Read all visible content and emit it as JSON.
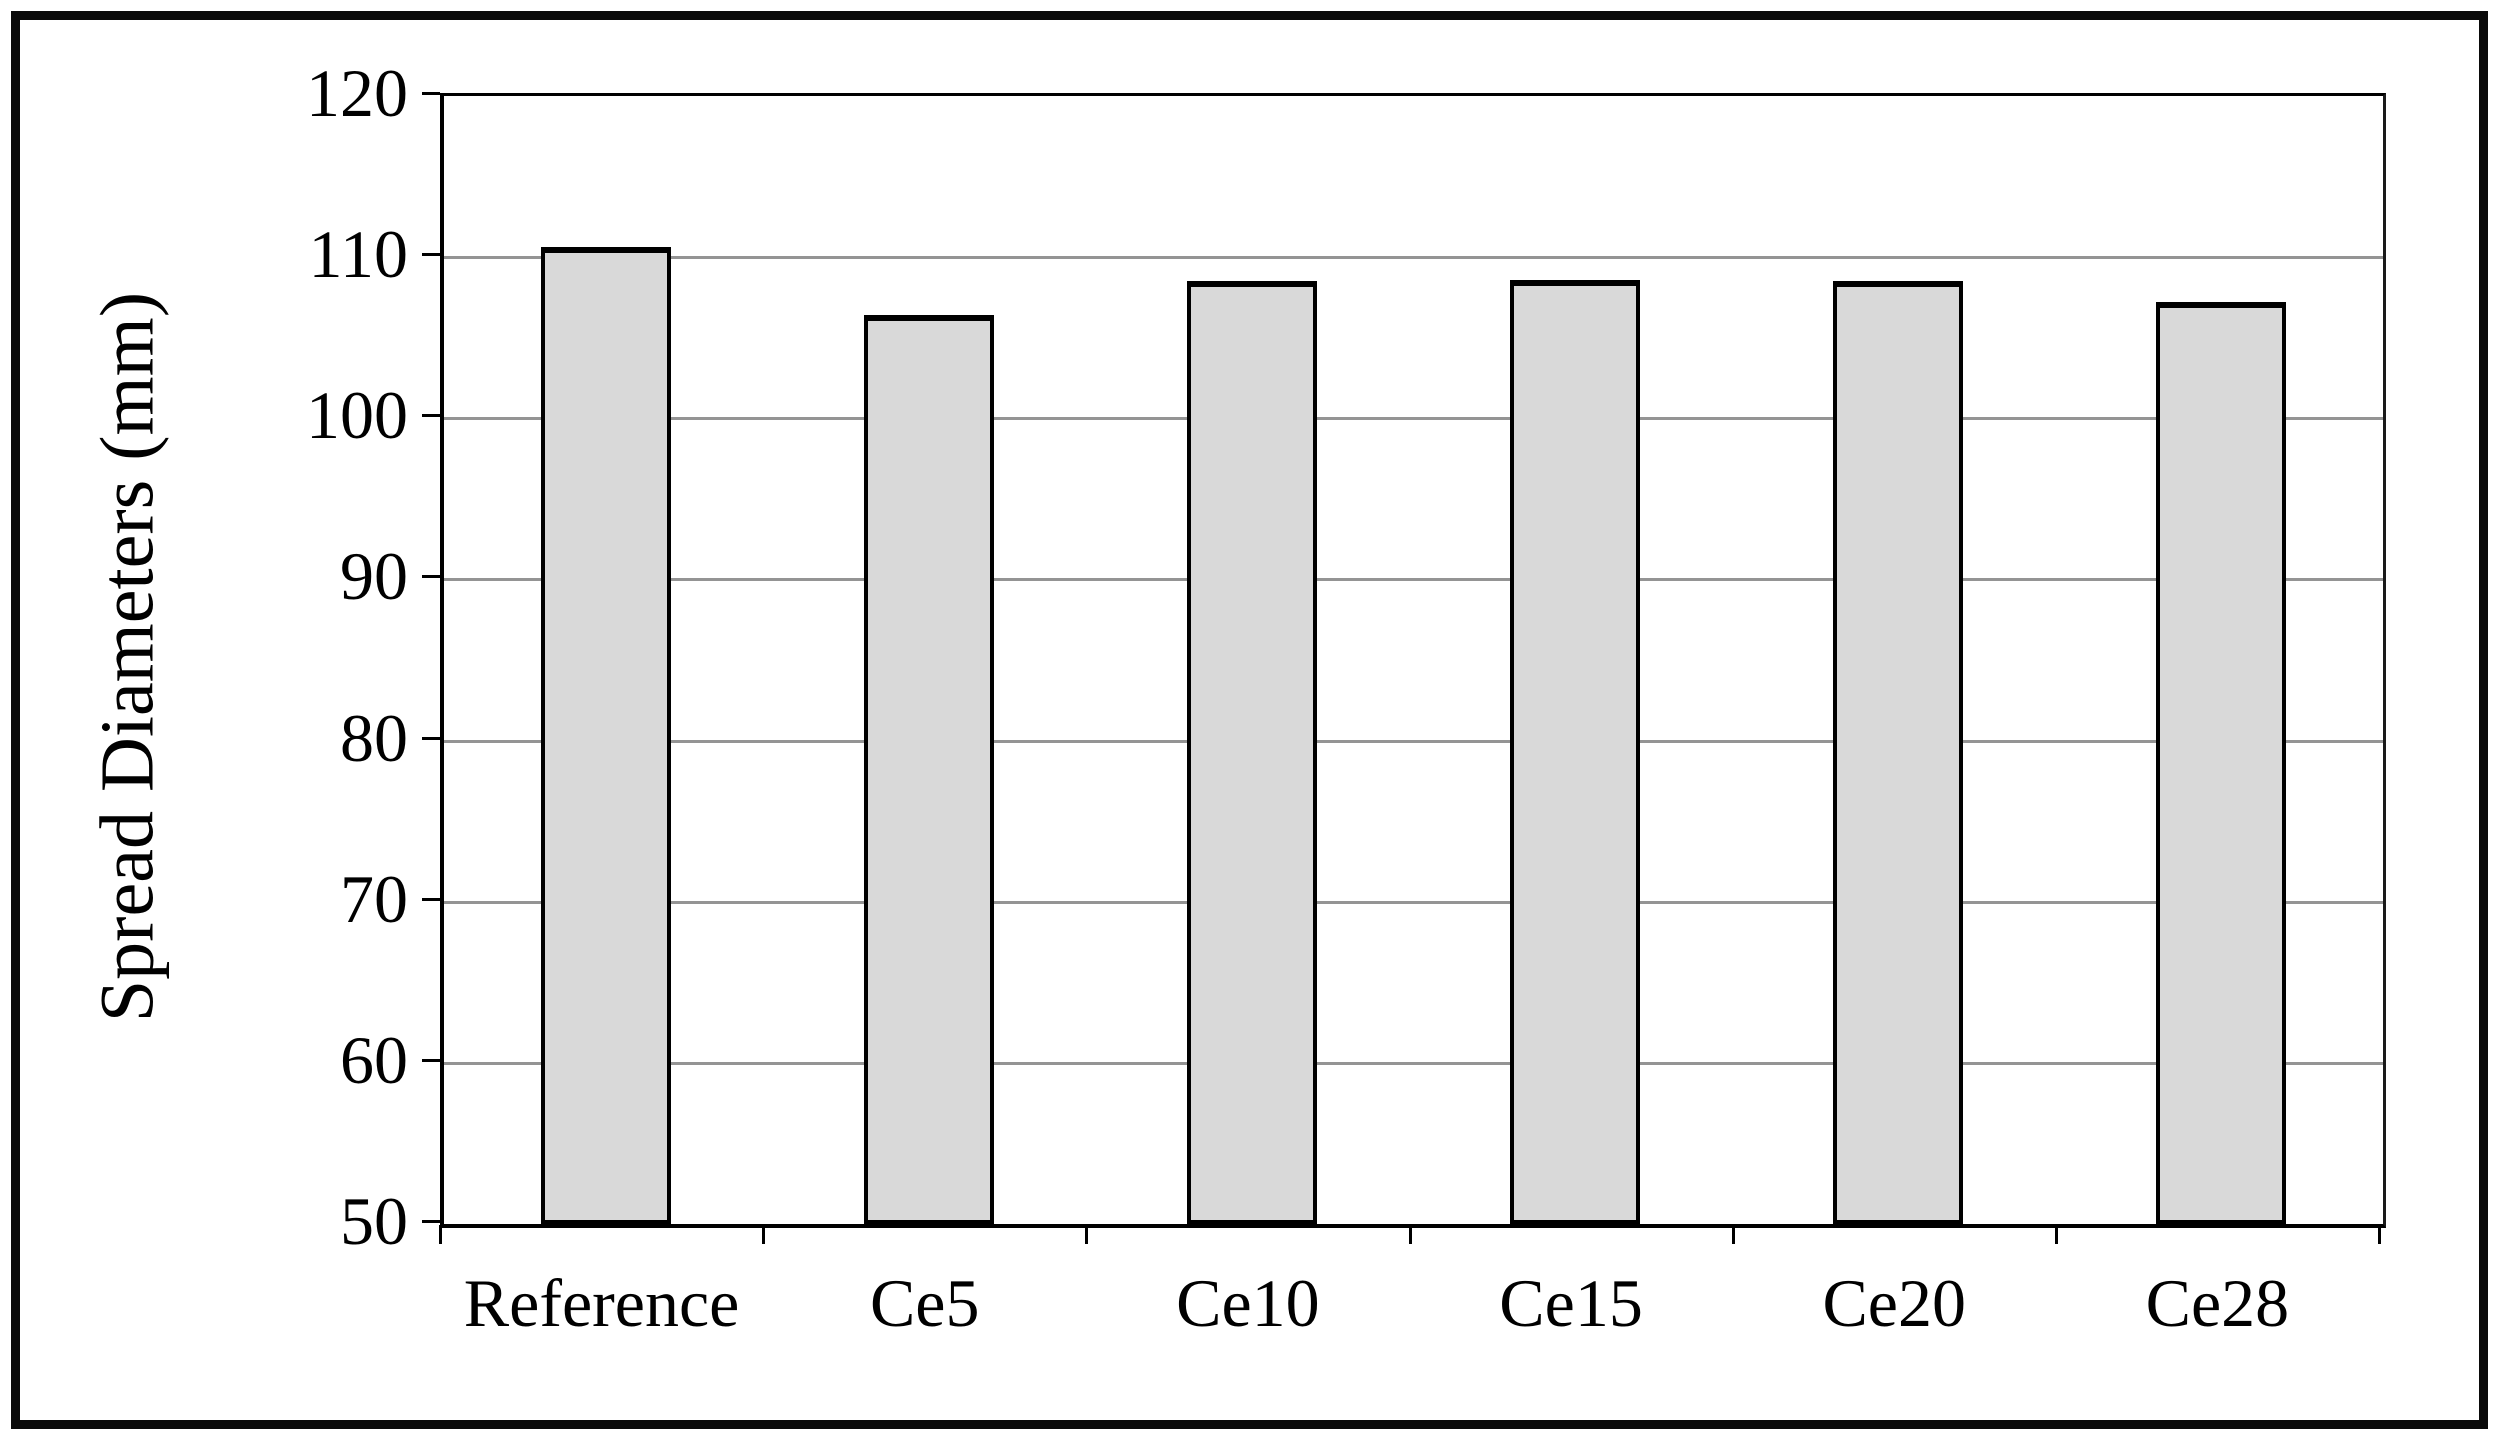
{
  "chart_data": {
    "type": "bar",
    "title": "",
    "xlabel": "",
    "ylabel": "Spread Diameters (mm)",
    "categories": [
      "Reference",
      "Ce5",
      "Ce10",
      "Ce15",
      "Ce20",
      "Ce28"
    ],
    "values": [
      110.6,
      106.4,
      108.5,
      108.6,
      108.5,
      107.2
    ],
    "ylim": [
      50,
      120
    ],
    "yticks": [
      50,
      60,
      70,
      80,
      90,
      100,
      110,
      120
    ],
    "grid": true,
    "legend": "none",
    "colors": {
      "bar_fill": "#d9d9d9",
      "bar_border": "#000000",
      "gridline": "#949494",
      "axis": "#000000",
      "text": "#000000",
      "figure_border": "#0a0a0a",
      "background": "#ffffff"
    }
  }
}
